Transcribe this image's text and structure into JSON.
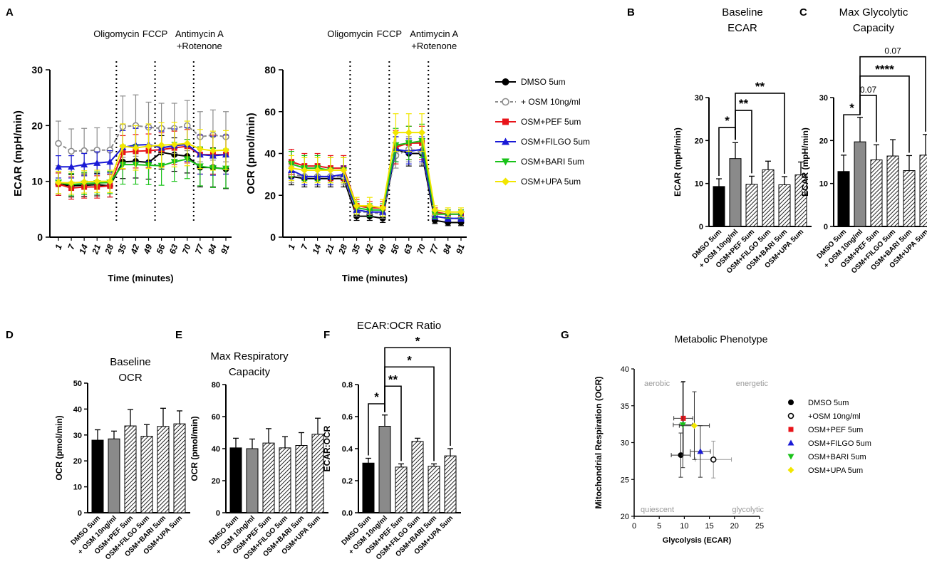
{
  "panels": {
    "A": "A",
    "B": "B",
    "C": "C",
    "D": "D",
    "E": "E",
    "F": "F",
    "G": "G"
  },
  "injections": [
    "Oligomycin",
    "FCCP",
    "Antimycin A",
    "+Rotenone"
  ],
  "legend_main": [
    {
      "label": "DMSO 5um",
      "color": "#000000",
      "marker": "circle"
    },
    {
      "label": "+ OSM 10ng/ml",
      "color": "#8c8c8c",
      "marker": "open-circle"
    },
    {
      "label": "OSM+PEF 5um",
      "color": "#e8141a",
      "marker": "square"
    },
    {
      "label": "OSM+FILGO 5um",
      "color": "#1a1ad6",
      "marker": "triangle-up"
    },
    {
      "label": "OSM+BARI 5um",
      "color": "#19c219",
      "marker": "triangle-down"
    },
    {
      "label": "OSM+UPA 5um",
      "color": "#f2e600",
      "marker": "diamond"
    }
  ],
  "bar_categories": [
    "DMSO 5um",
    "+ OSM 10ng/ml",
    "OSM+PEF 5um",
    "OSM+FILGO 5um",
    "OSM+BARI 5um",
    "OSM+UPA 5um"
  ],
  "legend_g": [
    {
      "label": "DMSO 5um",
      "color": "#000000",
      "marker": "circle"
    },
    {
      "label": "+OSM 10ng/ml",
      "color": "#000000",
      "marker": "open-circle"
    },
    {
      "label": "OSM+PEF 5um",
      "color": "#e8141a",
      "marker": "square"
    },
    {
      "label": "OSM+FILGO 5um",
      "color": "#1a1ad6",
      "marker": "triangle-up"
    },
    {
      "label": "OSM+BARI 5um",
      "color": "#19c219",
      "marker": "triangle-down"
    },
    {
      "label": "OSM+UPA 5um",
      "color": "#f2e600",
      "marker": "diamond"
    }
  ],
  "chart_data": [
    {
      "id": "A1",
      "type": "line",
      "xlabel": "Time (minutes)",
      "ylabel": "ECAR (mpH/min)",
      "x": [
        "1",
        "7",
        "14",
        "21",
        "28",
        "35",
        "42",
        "49",
        "56",
        "63",
        "70",
        "77",
        "84",
        "91"
      ],
      "ylim": [
        0,
        30
      ],
      "yticks": [
        "0",
        "10",
        "20",
        "30"
      ],
      "series": [
        {
          "name": "DMSO 5um",
          "values": [
            9.5,
            9.2,
            9.3,
            9.4,
            9.2,
            13.5,
            13.6,
            13.4,
            15.2,
            14.8,
            14.5,
            12.5,
            12.5,
            12.2
          ],
          "err": [
            2,
            2,
            2,
            2,
            2,
            3,
            3,
            3,
            3,
            3,
            3,
            3.5,
            3.5,
            3.5
          ]
        },
        {
          "name": "+ OSM 10ng/ml",
          "values": [
            16.8,
            15.4,
            15.5,
            15.6,
            15.6,
            19.8,
            20.0,
            19.7,
            19.5,
            19.5,
            20.0,
            18.0,
            18.3,
            18.0
          ],
          "err": [
            4,
            4,
            4,
            4,
            4,
            5.5,
            5.5,
            4.5,
            4.5,
            4.5,
            4.5,
            4.5,
            4.5,
            4.5
          ]
        },
        {
          "name": "OSM+PEF 5um",
          "values": [
            9.5,
            8.8,
            9.0,
            9.0,
            9.2,
            15.2,
            15.4,
            15.5,
            15.7,
            16.0,
            16.3,
            14.8,
            14.8,
            14.8
          ],
          "err": [
            2,
            2,
            2,
            2,
            2,
            3,
            3,
            3,
            3,
            3,
            3,
            3.5,
            3.5,
            3.5
          ]
        },
        {
          "name": "OSM+FILGO 5um",
          "values": [
            12.6,
            12.6,
            13.0,
            13.3,
            13.5,
            16.1,
            16.5,
            16.6,
            16.0,
            16.4,
            16.6,
            14.8,
            14.6,
            14.8
          ],
          "err": [
            2,
            2,
            2,
            2,
            2,
            3,
            3,
            3,
            3,
            3,
            3,
            3.5,
            3.5,
            3.5
          ]
        },
        {
          "name": "OSM+BARI 5um",
          "values": [
            9.8,
            9.4,
            9.6,
            9.7,
            9.8,
            13.0,
            13.0,
            12.9,
            12.8,
            13.5,
            14.0,
            12.7,
            12.4,
            12.3
          ],
          "err": [
            2,
            2,
            2,
            2,
            2,
            3.5,
            3.5,
            3.5,
            3.5,
            3.5,
            3.5,
            3.5,
            3.5,
            3.5
          ]
        },
        {
          "name": "OSM+UPA 5um",
          "values": [
            9.8,
            9.7,
            9.9,
            10.0,
            10.0,
            16.3,
            16.0,
            16.3,
            16.5,
            16.6,
            16.8,
            15.8,
            15.5,
            15.6
          ],
          "err": [
            2,
            2,
            2,
            2,
            2,
            4,
            4,
            4,
            4,
            4,
            4,
            3.5,
            3.5,
            3.5
          ]
        }
      ]
    },
    {
      "id": "A2",
      "type": "line",
      "xlabel": "Time (minutes)",
      "ylabel": "OCR (pmol/min)",
      "x": [
        "1",
        "7",
        "14",
        "21",
        "28",
        "35",
        "42",
        "49",
        "56",
        "63",
        "70",
        "77",
        "84",
        "91"
      ],
      "ylim": [
        0,
        80
      ],
      "yticks": [
        "0",
        "20",
        "40",
        "60",
        "80"
      ],
      "series": [
        {
          "name": "DMSO 5um",
          "values": [
            29,
            28,
            28,
            28,
            28,
            10,
            10,
            9,
            42,
            40,
            40,
            8,
            7,
            7
          ],
          "err": [
            4,
            4,
            4,
            4,
            4,
            2,
            2,
            2,
            6,
            6,
            6,
            1.5,
            1.5,
            1.5
          ]
        },
        {
          "name": "+ OSM 10ng/ml",
          "values": [
            30,
            29,
            29,
            29,
            29,
            12,
            12,
            11,
            39,
            42,
            41,
            10,
            9,
            9
          ],
          "err": [
            4,
            4,
            4,
            4,
            4,
            2,
            2,
            2,
            6,
            6,
            6,
            1.5,
            1.5,
            1.5
          ]
        },
        {
          "name": "OSM+PEF 5um",
          "values": [
            36,
            34,
            34,
            33,
            33,
            15,
            14,
            14,
            43,
            45,
            45,
            12,
            11,
            11
          ],
          "err": [
            6,
            6,
            6,
            6,
            6,
            3,
            3,
            3,
            8,
            8,
            8,
            2,
            2,
            2
          ]
        },
        {
          "name": "OSM+FILGO 5um",
          "values": [
            32,
            29,
            29,
            29,
            30,
            13,
            12,
            12,
            42,
            41,
            42,
            10,
            9,
            9
          ],
          "err": [
            4,
            4,
            4,
            4,
            4,
            2,
            2,
            2,
            6,
            6,
            6,
            1.5,
            1.5,
            1.5
          ]
        },
        {
          "name": "OSM+BARI 5um",
          "values": [
            35,
            33,
            33,
            32,
            32,
            14,
            13,
            13,
            44,
            45,
            46,
            11,
            11,
            11
          ],
          "err": [
            6,
            6,
            6,
            6,
            6,
            3,
            3,
            3,
            8,
            8,
            8,
            2,
            2,
            2
          ]
        },
        {
          "name": "OSM+UPA 5um",
          "values": [
            33,
            32,
            32,
            32,
            32,
            15,
            15,
            14,
            50,
            50,
            50,
            13,
            12,
            12
          ],
          "err": [
            6,
            6,
            6,
            6,
            6,
            4,
            4,
            4,
            9,
            9,
            9,
            2,
            2,
            2
          ]
        }
      ]
    },
    {
      "id": "B",
      "type": "bar",
      "title": [
        "Baseline",
        "ECAR"
      ],
      "ylabel": "ECAR (mpH/min)",
      "ylim": [
        0,
        30
      ],
      "yticks": [
        "0",
        "10",
        "20",
        "30"
      ],
      "values": [
        9.3,
        15.8,
        9.8,
        13.2,
        9.7,
        12.0
      ],
      "err": [
        1.8,
        3.7,
        1.9,
        2.0,
        1.9,
        3.0
      ],
      "annotations": [
        {
          "text": "*",
          "from": 0,
          "to": 1,
          "level": 23
        },
        {
          "text": "**",
          "from": 1,
          "to": 2,
          "level": 27
        },
        {
          "text": "**",
          "from": 1,
          "to": 4,
          "level": 31
        }
      ]
    },
    {
      "id": "C",
      "type": "bar",
      "title": [
        "Max Glycolytic",
        "Capacity"
      ],
      "ylabel": "ECAR (mpH/min)",
      "ylim": [
        0,
        30
      ],
      "yticks": [
        "0",
        "10",
        "20",
        "30"
      ],
      "values": [
        12.8,
        19.7,
        15.5,
        16.4,
        13.0,
        16.6
      ],
      "err": [
        3.8,
        5.7,
        3.5,
        3.8,
        3.5,
        4.8
      ],
      "annotations": [
        {
          "text": "*",
          "from": 0,
          "to": 1,
          "level": 26,
          "small": false
        },
        {
          "text": "0.07",
          "from": 1,
          "to": 2,
          "level": 30.5,
          "small": true
        },
        {
          "text": "****",
          "from": 1,
          "to": 4,
          "level": 35,
          "small": false
        },
        {
          "text": "0.07",
          "from": 1,
          "to": 5,
          "level": 39.5,
          "small": true
        }
      ]
    },
    {
      "id": "D",
      "type": "bar",
      "title": [
        "Baseline",
        "OCR"
      ],
      "ylabel": "OCR (pmol/min)",
      "ylim": [
        0,
        50
      ],
      "yticks": [
        "0",
        "10",
        "20",
        "30",
        "40",
        "50"
      ],
      "values": [
        28.0,
        28.5,
        33.5,
        29.5,
        33.3,
        34.3
      ],
      "err": [
        4.0,
        3.0,
        6.3,
        4.5,
        7.0,
        5.0
      ]
    },
    {
      "id": "E",
      "type": "bar",
      "title": [
        "Max Respiratory",
        "Capacity"
      ],
      "ylabel": "OCR (pmol/min)",
      "ylim": [
        0,
        80
      ],
      "yticks": [
        "0",
        "20",
        "40",
        "60",
        "80"
      ],
      "values": [
        40.5,
        40.0,
        43.5,
        40.5,
        42.0,
        49.0
      ],
      "err": [
        6.0,
        6.0,
        9.0,
        7.0,
        8.0,
        10.0
      ]
    },
    {
      "id": "F",
      "type": "bar",
      "title": [
        "ECAR:OCR Ratio"
      ],
      "ylabel": "ECAR:OCR",
      "ylim": [
        0,
        0.8
      ],
      "yticks": [
        "0.0",
        "0.2",
        "0.4",
        "0.6",
        "0.8"
      ],
      "values": [
        0.31,
        0.54,
        0.285,
        0.445,
        0.29,
        0.355
      ],
      "err": [
        0.03,
        0.07,
        0.02,
        0.02,
        0.015,
        0.045
      ],
      "annotations": [
        {
          "text": "*",
          "from": 0,
          "to": 1,
          "level": 0.68
        },
        {
          "text": "**",
          "from": 1,
          "to": 2,
          "level": 0.79
        },
        {
          "text": "*",
          "from": 1,
          "to": 4,
          "level": 0.91
        },
        {
          "text": "*",
          "from": 1,
          "to": 5,
          "level": 1.03
        }
      ]
    },
    {
      "id": "G",
      "type": "scatter",
      "title": [
        "Metabolic Phenotype"
      ],
      "xlabel": "Glycolysis (ECAR)",
      "ylabel": "Mitochondrial Respiration (OCR)",
      "xlim": [
        0,
        25
      ],
      "ylim": [
        20,
        40
      ],
      "xticks": [
        "0",
        "5",
        "10",
        "15",
        "20",
        "25"
      ],
      "yticks": [
        "20",
        "25",
        "30",
        "35",
        "40"
      ],
      "quadrants": [
        "aerobic",
        "energetic",
        "quiescent",
        "glycolytic"
      ],
      "points": [
        {
          "name": "DMSO 5um",
          "x": 9.3,
          "y": 28.3,
          "xerr": 1.9,
          "yerr": 3.0
        },
        {
          "name": "+OSM 10ng/ml",
          "x": 15.8,
          "y": 27.7,
          "xerr": 3.6,
          "yerr": 2.5
        },
        {
          "name": "OSM+PEF 5um",
          "x": 9.8,
          "y": 33.3,
          "xerr": 1.9,
          "yerr": 5.0
        },
        {
          "name": "OSM+FILGO 5um",
          "x": 13.2,
          "y": 28.8,
          "xerr": 2.0,
          "yerr": 3.5
        },
        {
          "name": "OSM+BARI 5um",
          "x": 9.7,
          "y": 32.4,
          "xerr": 1.9,
          "yerr": 5.8
        },
        {
          "name": "OSM+UPA 5um",
          "x": 12.0,
          "y": 32.3,
          "xerr": 3.0,
          "yerr": 4.6
        }
      ]
    }
  ]
}
